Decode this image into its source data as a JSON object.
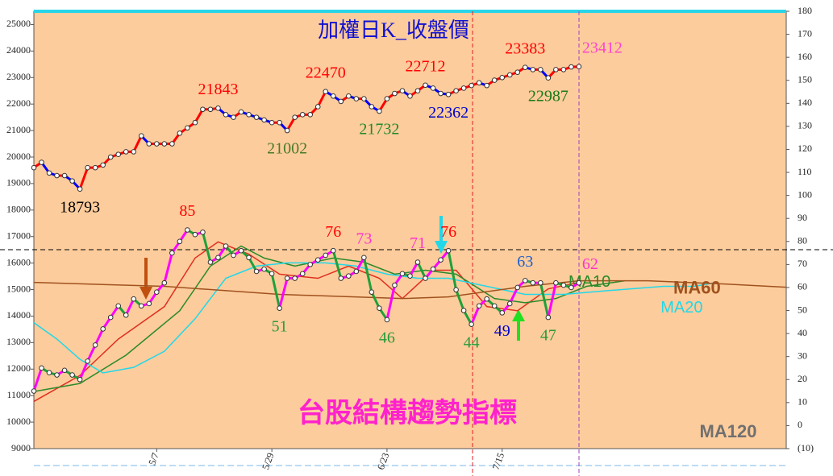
{
  "chart_data": {
    "type": "line",
    "title": "加權日K_收盤價",
    "subtitle": "台股結構趨勢指標",
    "annotation": "MA120",
    "categories": [
      null,
      null,
      null,
      null,
      null,
      null,
      null,
      null,
      null,
      null,
      null,
      null,
      null,
      null,
      null,
      null,
      "5/7",
      null,
      null,
      null,
      null,
      null,
      null,
      null,
      null,
      null,
      null,
      null,
      null,
      null,
      null,
      "5/29",
      null,
      null,
      null,
      null,
      null,
      null,
      null,
      null,
      null,
      null,
      null,
      null,
      null,
      null,
      "6/23",
      null,
      null,
      null,
      null,
      null,
      null,
      null,
      null,
      null,
      null,
      null,
      null,
      null,
      null,
      "7/15",
      null,
      null,
      null,
      null,
      null,
      null,
      null,
      null,
      null,
      null
    ],
    "ylim": [
      9000,
      25500
    ],
    "yticks": [
      9000,
      10000,
      11000,
      12000,
      13000,
      14000,
      15000,
      16000,
      17000,
      18000,
      19000,
      20000,
      21000,
      22000,
      23000,
      24000,
      25000
    ],
    "y2lim": [
      -10,
      180
    ],
    "y2ticks": [
      {
        "value": -10,
        "label": "(10)"
      },
      0,
      10,
      20,
      30,
      40,
      50,
      60,
      70,
      80,
      90,
      100,
      110,
      120,
      130,
      140,
      150,
      160,
      170,
      180
    ],
    "series": [
      {
        "axis": "y",
        "color": "#0000ff",
        "up_color": "#ff0000",
        "values": [
          19600,
          19800,
          19400,
          19300,
          19300,
          19100,
          18793,
          19600,
          19600,
          19700,
          20000,
          20100,
          20200,
          20200,
          20800,
          20500,
          20500,
          20500,
          20500,
          20900,
          21100,
          21300,
          21800,
          21800,
          21843,
          21600,
          21500,
          21700,
          21600,
          21500,
          21400,
          21300,
          21300,
          21002,
          21500,
          21600,
          21600,
          21900,
          22470,
          22300,
          22100,
          22300,
          22200,
          22200,
          21900,
          21732,
          22200,
          22400,
          22500,
          22300,
          22500,
          22712,
          22600,
          22400,
          22362,
          22500,
          22600,
          22700,
          22800,
          22700,
          22900,
          23000,
          23100,
          23200,
          23383,
          23300,
          23300,
          22987,
          23300,
          23300,
          23400,
          23412
        ],
        "label_colors": [
          null,
          null,
          null,
          null,
          null,
          null,
          "#000000",
          null,
          null,
          null,
          null,
          null,
          null,
          null,
          null,
          null,
          null,
          null,
          null,
          null,
          null,
          null,
          null,
          null,
          "#ff0000",
          null,
          null,
          null,
          null,
          null,
          null,
          null,
          null,
          "#4a7a2a",
          null,
          null,
          null,
          null,
          "#ff0000",
          null,
          null,
          null,
          null,
          null,
          null,
          "#1f8a2a",
          null,
          null,
          null,
          null,
          null,
          "#ff0000",
          null,
          null,
          "#0000cc",
          null,
          null,
          null,
          null,
          null,
          null,
          null,
          null,
          null,
          "#ff0000",
          null,
          null,
          "#1a7a1a",
          null,
          null,
          null,
          "#ff44cc"
        ]
      },
      {
        "axis": "y2",
        "color": "#1fa03a",
        "up_color": "#ff00ff",
        "values": [
          15,
          25,
          23,
          22,
          24,
          22,
          20,
          28,
          35,
          42,
          47,
          52,
          48,
          55,
          52,
          53,
          58,
          62,
          75,
          80,
          85,
          83,
          84,
          71,
          73,
          78,
          74,
          76,
          73,
          67,
          68,
          66,
          51,
          64,
          64,
          66,
          70,
          72,
          74,
          76,
          64,
          65,
          67,
          73,
          58,
          51,
          46,
          61,
          66,
          65,
          71,
          64,
          68,
          72,
          76,
          59,
          50,
          44,
          52,
          55,
          52,
          49,
          53,
          60,
          63,
          62,
          62,
          47,
          62,
          61,
          60,
          62
        ],
        "label_colors": [
          null,
          null,
          null,
          null,
          null,
          null,
          null,
          null,
          null,
          null,
          null,
          null,
          null,
          null,
          null,
          null,
          null,
          null,
          null,
          null,
          "#ff0000",
          null,
          null,
          null,
          null,
          null,
          null,
          null,
          null,
          null,
          null,
          null,
          "#2a9a3a",
          null,
          null,
          null,
          null,
          null,
          null,
          "#ff0000",
          null,
          null,
          null,
          "#ff33cc",
          null,
          null,
          "#2a9a3a",
          null,
          null,
          null,
          "#ff33cc",
          null,
          null,
          null,
          "#ff0000",
          null,
          null,
          "#2a9a3a",
          null,
          null,
          null,
          "#0000cc",
          null,
          null,
          "#1a5fd0",
          null,
          null,
          "#2a9a3a",
          null,
          null,
          null,
          "#ff33cc"
        ]
      },
      {
        "axis": "y2",
        "color": "#e03020",
        "x": [
          0,
          6,
          11,
          17,
          21,
          24,
          28,
          32,
          37,
          41,
          45,
          48,
          52,
          55,
          59,
          63,
          67,
          71
        ],
        "values": [
          10.5,
          21.8,
          37.6,
          51.7,
          72.8,
          79.8,
          74.5,
          65.8,
          64,
          69.3,
          64,
          55.2,
          67.5,
          67.5,
          51.7,
          49.9,
          59.4,
          62.2
        ]
      },
      {
        "axis": "y2",
        "name": "MA10",
        "color": "#2a8a2a",
        "x": [
          0,
          6,
          12,
          19,
          23,
          27,
          30,
          34,
          39,
          43,
          47,
          51,
          55,
          60,
          64,
          68,
          72,
          77
        ],
        "values": [
          14.8,
          18.3,
          30.6,
          49.9,
          69.3,
          78,
          72.8,
          69.3,
          72.8,
          71,
          65.8,
          67.5,
          65.8,
          55.2,
          53.4,
          55.2,
          60.5,
          62.9
        ]
      },
      {
        "axis": "y2",
        "name": "MA20",
        "color": "#22d8e8",
        "x": [
          0,
          3,
          6,
          9,
          13,
          17,
          21,
          25,
          29,
          33,
          38,
          42,
          46,
          50,
          54,
          59,
          64,
          69,
          75,
          82,
          86,
          89
        ],
        "values": [
          44.7,
          37.6,
          28.8,
          22.9,
          25.3,
          32.3,
          46.4,
          64,
          69.3,
          70.7,
          70.7,
          69.3,
          65.8,
          64,
          64,
          60.5,
          57,
          57,
          58.7,
          60.5,
          60.5,
          62.2
        ]
      },
      {
        "axis": "y2",
        "name": "MA60",
        "color": "#a0521e",
        "x": [
          0,
          17,
          32,
          48,
          54,
          64,
          71,
          80,
          90,
          98
        ],
        "values": [
          62.2,
          60.5,
          57,
          55.2,
          55.9,
          60.5,
          62.9,
          62.9,
          61.5,
          60.1
        ]
      }
    ]
  }
}
